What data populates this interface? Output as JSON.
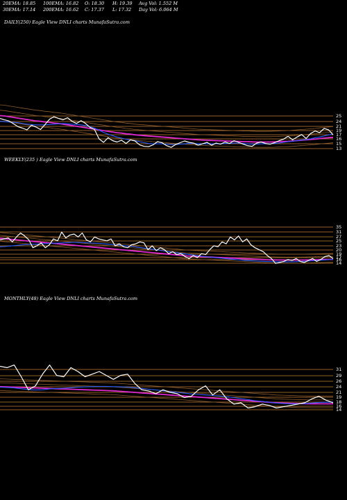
{
  "header": {
    "ema20": "20EMA: 18.85",
    "ema100": "100EMA: 16.82",
    "open": "O: 18.30",
    "high": "H: 19.39",
    "avgvol": "Avg Vol: 1.552  M",
    "ema30": "30EMA: 17.14",
    "ema200": "200EMA: 16.62",
    "close": "C: 17.37",
    "low": "L: 17.32",
    "dayvol": "Day Vol: 6.064  M"
  },
  "colors": {
    "background": "#000000",
    "price": "#ffffff",
    "ema_blue": "#2a5cff",
    "ema_magenta": "#e02ad0",
    "ema_brown": "#8b5a2b",
    "gridline": "#c8823c"
  },
  "chart_data": [
    {
      "type": "line",
      "panel": "daily",
      "title": "DAILY(250) Eagle  View  DNLI charts MunafaSutra.com",
      "yticks": [
        "25",
        "24",
        "21",
        "19",
        "17",
        "16",
        "15",
        "13"
      ],
      "series": [
        {
          "values": [
            22,
            21.6,
            21.3,
            20.5,
            19.7,
            19.3,
            18.8,
            20.1,
            19.6,
            18.9,
            20.3,
            21.8,
            22.5,
            22.0,
            21.6,
            22.2,
            21.2,
            20.6,
            21.4,
            20.6,
            19.5,
            18.9,
            16.3,
            15.3,
            16.6,
            15.8,
            15.4,
            15.9,
            15.0,
            16.0,
            15.7,
            14.6,
            14.2,
            14.1,
            14.6,
            15.5,
            15.2,
            14.4,
            13.9,
            14.7,
            15.2,
            15.7,
            15.3,
            15.1,
            14.5,
            14.9,
            15.3,
            14.5,
            15.1,
            14.8,
            15.4,
            15.0,
            15.8,
            15.3,
            14.8,
            14.4,
            14.2,
            15.1,
            15.4,
            15.0,
            14.8,
            15.2,
            15.8,
            16.2,
            17.0,
            16.0,
            16.8,
            17.5,
            16.4,
            17.8,
            18.5,
            18.0,
            19.2,
            18.8,
            17.4
          ]
        },
        {
          "values": [
            21.2,
            21.1,
            21.0,
            20.9,
            20.8,
            20.6,
            20.4,
            20.3,
            20.2,
            20.2,
            20.2,
            20.3,
            20.4,
            20.5,
            20.6,
            20.5,
            20.4,
            20.3,
            20.2,
            20.0,
            19.7,
            19.3,
            18.7,
            18.1,
            17.6,
            17.2,
            16.8,
            16.5,
            16.2,
            16.0,
            15.8,
            15.5,
            15.2,
            15.0,
            14.9,
            14.9,
            14.9,
            14.8,
            14.7,
            14.7,
            14.8,
            14.9,
            15.0,
            15.0,
            14.9,
            14.9,
            14.9,
            14.9,
            14.9,
            14.9,
            15.0,
            15.0,
            15.1,
            15.1,
            15.0,
            14.9,
            14.8,
            14.8,
            14.9,
            14.9,
            14.9,
            15.0,
            15.1,
            15.3,
            15.5,
            15.6,
            15.8,
            16.0,
            16.1,
            16.3,
            16.6,
            16.8,
            17.1,
            17.4,
            17.6
          ]
        },
        {
          "values": [
            22.8,
            22.7,
            22.5,
            22.3,
            22.1,
            21.9,
            21.7,
            21.5,
            21.3,
            21.2,
            21.0,
            20.9,
            20.7,
            20.6,
            20.4,
            20.2,
            20.0,
            19.8,
            19.6,
            19.4,
            19.2,
            19.0,
            18.8,
            18.6,
            18.4,
            18.2,
            18.0,
            17.9,
            17.7,
            17.6,
            17.4,
            17.3,
            17.2,
            17.1,
            17.0,
            16.9,
            16.8,
            16.7,
            16.6,
            16.5,
            16.4,
            16.3,
            16.2,
            16.1,
            16.0,
            15.95,
            15.9,
            15.85,
            15.8,
            15.75,
            15.7,
            15.65,
            15.6,
            15.55,
            15.5,
            15.5,
            15.45,
            15.4,
            15.4,
            15.4,
            15.4,
            15.45,
            15.5,
            15.55,
            15.6,
            15.7,
            15.8,
            15.9,
            16.0,
            16.1,
            16.2,
            16.35,
            16.5,
            16.6,
            16.7
          ]
        }
      ]
    },
    {
      "type": "line",
      "panel": "weekly",
      "title": "WEEKLY(235                ) Eagle  View  DNLI charts MunafaSutra.com",
      "yticks": [
        "35",
        "31",
        "27",
        "25",
        "23",
        "20",
        "19",
        "17",
        "16",
        "14"
      ],
      "series": [
        {
          "values": [
            27,
            27.5,
            28,
            26,
            28.5,
            30.5,
            29,
            27,
            23,
            24,
            25.5,
            23,
            24.5,
            27.5,
            26.5,
            31,
            28,
            29.5,
            30,
            28.5,
            30.5,
            27,
            26,
            28.5,
            27.5,
            27,
            26.5,
            27.5,
            24,
            25,
            23.5,
            23,
            24.5,
            25,
            26,
            25.5,
            22,
            24,
            21.5,
            23,
            22,
            20,
            21,
            19.5,
            20,
            18.5,
            17.5,
            19,
            18,
            20,
            19.5,
            22,
            24,
            23.5,
            26,
            25,
            28.5,
            27,
            29,
            26,
            27.5,
            24.5,
            23,
            22,
            21,
            19,
            17.5,
            15,
            15.5,
            16,
            17,
            16.5,
            17.5,
            16,
            15.5,
            16.5,
            17.5,
            16,
            17,
            18.5,
            19,
            17.5
          ]
        },
        {
          "values": [
            23.5,
            23.6,
            23.8,
            24,
            24.2,
            24.4,
            24.6,
            24.7,
            24.8,
            24.9,
            25,
            25.1,
            25.2,
            25.3,
            25.4,
            25.5,
            25.6,
            25.7,
            25.7,
            25.7,
            25.6,
            25.5,
            25.4,
            25.3,
            25.2,
            25.0,
            24.8,
            24.6,
            24.4,
            24.2,
            24.0,
            23.8,
            23.6,
            23.3,
            23.0,
            22.7,
            22.4,
            22.1,
            21.8,
            21.5,
            21.2,
            20.9,
            20.6,
            20.3,
            20.0,
            19.7,
            19.4,
            19.1,
            18.8,
            18.5,
            18.3,
            18.1,
            17.9,
            17.7,
            17.5,
            17.3,
            17.1,
            16.9,
            16.7,
            16.5,
            16.4,
            16.3,
            16.2,
            16.1,
            16.0,
            15.95,
            15.9,
            15.85,
            15.8,
            15.8,
            15.85,
            15.9,
            16.0,
            16.1,
            16.2,
            16.35,
            16.5,
            16.65,
            16.8,
            16.95,
            17.1
          ]
        },
        {
          "values": [
            27.8,
            27.6,
            27.4,
            27.2,
            27.0,
            26.8,
            26.6,
            26.4,
            26.2,
            26.0,
            25.8,
            25.6,
            25.4,
            25.2,
            25.0,
            24.8,
            24.6,
            24.4,
            24.2,
            24.0,
            23.8,
            23.6,
            23.4,
            23.2,
            23.0,
            22.8,
            22.6,
            22.4,
            22.2,
            22.0,
            21.8,
            21.6,
            21.4,
            21.2,
            21.0,
            20.8,
            20.6,
            20.4,
            20.2,
            20.0,
            19.8,
            19.6,
            19.4,
            19.2,
            19.0,
            18.8,
            18.7,
            18.6,
            18.5,
            18.4,
            18.3,
            18.2,
            18.1,
            18.0,
            17.9,
            17.8,
            17.7,
            17.6,
            17.5,
            17.4,
            17.3,
            17.2,
            17.1,
            17.0,
            16.9,
            16.85,
            16.8,
            16.75,
            16.7,
            16.7,
            16.7,
            16.7,
            16.7,
            16.75,
            16.8,
            16.85,
            16.9,
            16.95,
            17.0,
            17.05,
            17.1
          ]
        }
      ]
    },
    {
      "type": "line",
      "panel": "monthly",
      "title": "MONTHLY(48) Eagle  View  DNLI charts MunafaSutra.com",
      "yticks": [
        "31",
        "29",
        "26",
        "24",
        "21",
        "19",
        "18",
        "16",
        "14"
      ],
      "series": [
        {
          "values": [
            31,
            30.5,
            31.5,
            27,
            22,
            23.5,
            28,
            31.5,
            27.5,
            27,
            30.5,
            29,
            27,
            28,
            29,
            27.5,
            26,
            27.5,
            28,
            24.5,
            22,
            21.5,
            20.5,
            22,
            21,
            20.5,
            19,
            19.5,
            22,
            23.5,
            20,
            22,
            18.5,
            16.5,
            17,
            15,
            15.5,
            16.5,
            16,
            15,
            15.5,
            16,
            16.5,
            17,
            18.5,
            19.5,
            18,
            17
          ]
        },
        {
          "values": [
            23,
            22.9,
            22.7,
            22.4,
            22.1,
            21.9,
            22.0,
            22.3,
            22.5,
            22.6,
            22.8,
            23.0,
            23.1,
            23.2,
            23.3,
            23.3,
            23.2,
            23.1,
            23.0,
            22.8,
            22.5,
            22.2,
            21.9,
            21.6,
            21.3,
            21.0,
            20.7,
            20.4,
            20.2,
            20.0,
            19.8,
            19.6,
            19.3,
            19.0,
            18.6,
            18.2,
            17.8,
            17.5,
            17.2,
            16.9,
            16.7,
            16.6,
            16.6,
            16.7,
            16.9,
            17.1,
            17.2,
            17.3
          ]
        },
        {
          "values": [
            23.2,
            23.1,
            23.0,
            22.9,
            22.8,
            22.7,
            22.6,
            22.5,
            22.4,
            22.3,
            22.2,
            22.1,
            22.0,
            21.9,
            21.8,
            21.7,
            21.6,
            21.4,
            21.2,
            21.0,
            20.8,
            20.6,
            20.4,
            20.2,
            20.0,
            19.8,
            19.6,
            19.4,
            19.2,
            19.0,
            18.8,
            18.6,
            18.4,
            18.2,
            18.0,
            17.8,
            17.6,
            17.4,
            17.2,
            17.0,
            16.9,
            16.8,
            16.7,
            16.65,
            16.6,
            16.6,
            16.6,
            16.6
          ]
        }
      ]
    }
  ]
}
